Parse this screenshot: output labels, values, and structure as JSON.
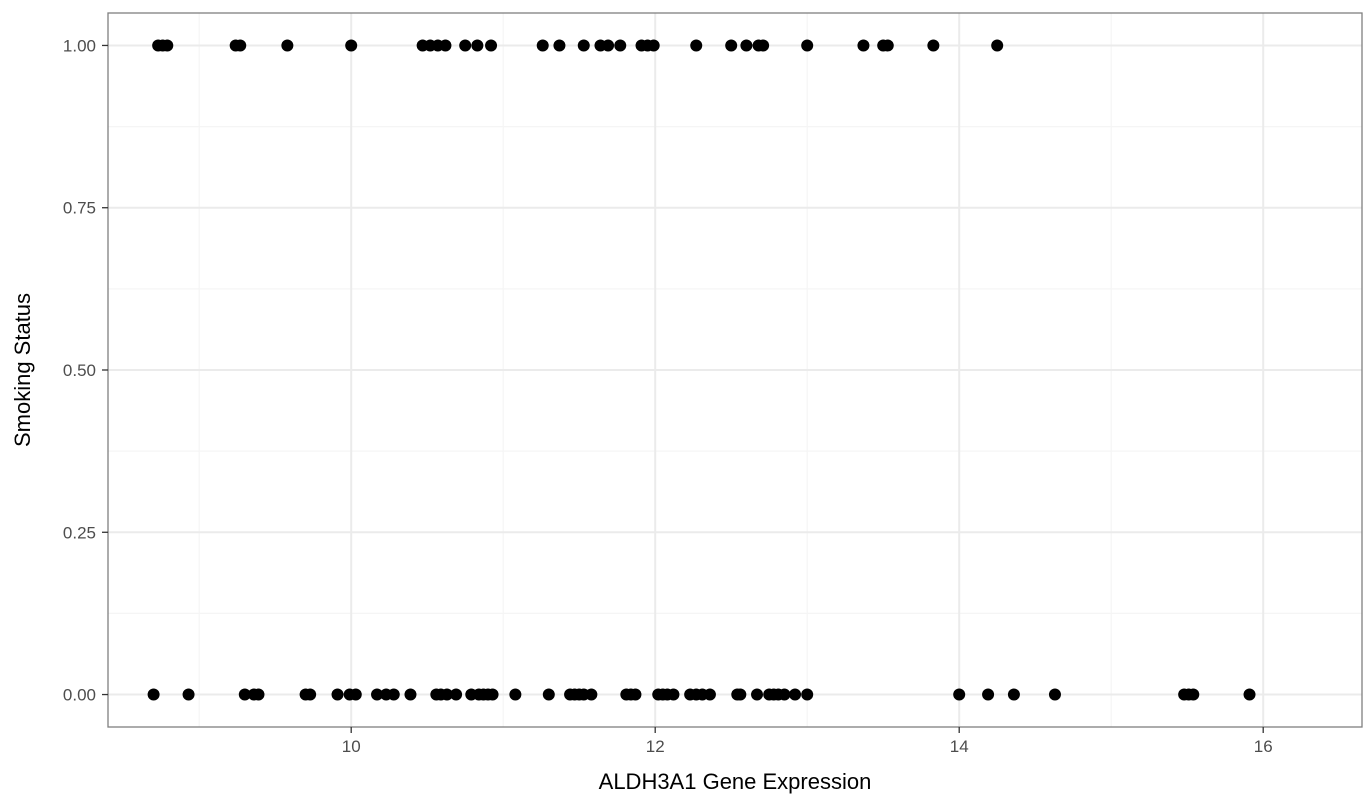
{
  "colors": {
    "background": "#ffffff",
    "panel_border": "#7f7f7f",
    "grid_major": "#ebebeb",
    "grid_minor": "#f5f5f5",
    "point": "#000000",
    "tick_text": "#4d4d4d",
    "axis_text": "#000000"
  },
  "chart_data": {
    "type": "scatter",
    "title": "",
    "xlabel": "ALDH3A1 Gene Expression",
    "ylabel": "Smoking Status",
    "xlim": [
      8.4,
      16.65
    ],
    "ylim": [
      -0.05,
      1.05
    ],
    "x_ticks": [
      10,
      12,
      14,
      16
    ],
    "x_tick_labels": [
      "10",
      "12",
      "14",
      "16"
    ],
    "y_ticks": [
      0,
      0.25,
      0.5,
      0.75,
      1
    ],
    "y_tick_labels": [
      "0.00",
      "0.25",
      "0.50",
      "0.75",
      "1.00"
    ],
    "grid": true,
    "legend": "none",
    "series": [
      {
        "points": [
          {
            "x": 8.73,
            "y": 1
          },
          {
            "x": 8.76,
            "y": 1
          },
          {
            "x": 8.79,
            "y": 1
          },
          {
            "x": 9.24,
            "y": 1
          },
          {
            "x": 9.27,
            "y": 1
          },
          {
            "x": 9.58,
            "y": 1
          },
          {
            "x": 10.0,
            "y": 1
          },
          {
            "x": 10.47,
            "y": 1
          },
          {
            "x": 10.52,
            "y": 1
          },
          {
            "x": 10.57,
            "y": 1
          },
          {
            "x": 10.62,
            "y": 1
          },
          {
            "x": 10.75,
            "y": 1
          },
          {
            "x": 10.83,
            "y": 1
          },
          {
            "x": 10.92,
            "y": 1
          },
          {
            "x": 11.26,
            "y": 1
          },
          {
            "x": 11.37,
            "y": 1
          },
          {
            "x": 11.53,
            "y": 1
          },
          {
            "x": 11.64,
            "y": 1
          },
          {
            "x": 11.69,
            "y": 1
          },
          {
            "x": 11.77,
            "y": 1
          },
          {
            "x": 11.91,
            "y": 1
          },
          {
            "x": 11.95,
            "y": 1
          },
          {
            "x": 11.99,
            "y": 1
          },
          {
            "x": 12.27,
            "y": 1
          },
          {
            "x": 12.5,
            "y": 1
          },
          {
            "x": 12.6,
            "y": 1
          },
          {
            "x": 12.68,
            "y": 1
          },
          {
            "x": 12.71,
            "y": 1
          },
          {
            "x": 13.0,
            "y": 1
          },
          {
            "x": 13.37,
            "y": 1
          },
          {
            "x": 13.5,
            "y": 1
          },
          {
            "x": 13.53,
            "y": 1
          },
          {
            "x": 13.83,
            "y": 1
          },
          {
            "x": 14.25,
            "y": 1
          },
          {
            "x": 8.7,
            "y": 0
          },
          {
            "x": 8.93,
            "y": 0
          },
          {
            "x": 9.3,
            "y": 0
          },
          {
            "x": 9.36,
            "y": 0
          },
          {
            "x": 9.39,
            "y": 0
          },
          {
            "x": 9.7,
            "y": 0
          },
          {
            "x": 9.73,
            "y": 0
          },
          {
            "x": 9.91,
            "y": 0
          },
          {
            "x": 9.99,
            "y": 0
          },
          {
            "x": 10.03,
            "y": 0
          },
          {
            "x": 10.17,
            "y": 0
          },
          {
            "x": 10.23,
            "y": 0
          },
          {
            "x": 10.28,
            "y": 0
          },
          {
            "x": 10.39,
            "y": 0
          },
          {
            "x": 10.56,
            "y": 0
          },
          {
            "x": 10.59,
            "y": 0
          },
          {
            "x": 10.63,
            "y": 0
          },
          {
            "x": 10.69,
            "y": 0
          },
          {
            "x": 10.79,
            "y": 0
          },
          {
            "x": 10.84,
            "y": 0
          },
          {
            "x": 10.87,
            "y": 0
          },
          {
            "x": 10.9,
            "y": 0
          },
          {
            "x": 10.93,
            "y": 0
          },
          {
            "x": 11.08,
            "y": 0
          },
          {
            "x": 11.3,
            "y": 0
          },
          {
            "x": 11.44,
            "y": 0
          },
          {
            "x": 11.47,
            "y": 0
          },
          {
            "x": 11.5,
            "y": 0
          },
          {
            "x": 11.53,
            "y": 0
          },
          {
            "x": 11.58,
            "y": 0
          },
          {
            "x": 11.81,
            "y": 0
          },
          {
            "x": 11.84,
            "y": 0
          },
          {
            "x": 11.87,
            "y": 0
          },
          {
            "x": 12.02,
            "y": 0
          },
          {
            "x": 12.05,
            "y": 0
          },
          {
            "x": 12.08,
            "y": 0
          },
          {
            "x": 12.12,
            "y": 0
          },
          {
            "x": 12.23,
            "y": 0
          },
          {
            "x": 12.27,
            "y": 0
          },
          {
            "x": 12.31,
            "y": 0
          },
          {
            "x": 12.36,
            "y": 0
          },
          {
            "x": 12.54,
            "y": 0
          },
          {
            "x": 12.56,
            "y": 0
          },
          {
            "x": 12.67,
            "y": 0
          },
          {
            "x": 12.75,
            "y": 0
          },
          {
            "x": 12.78,
            "y": 0
          },
          {
            "x": 12.81,
            "y": 0
          },
          {
            "x": 12.85,
            "y": 0
          },
          {
            "x": 12.92,
            "y": 0
          },
          {
            "x": 13.0,
            "y": 0
          },
          {
            "x": 14.0,
            "y": 0
          },
          {
            "x": 14.19,
            "y": 0
          },
          {
            "x": 14.36,
            "y": 0
          },
          {
            "x": 14.63,
            "y": 0
          },
          {
            "x": 15.48,
            "y": 0
          },
          {
            "x": 15.51,
            "y": 0
          },
          {
            "x": 15.54,
            "y": 0
          },
          {
            "x": 15.91,
            "y": 0
          }
        ]
      }
    ]
  }
}
